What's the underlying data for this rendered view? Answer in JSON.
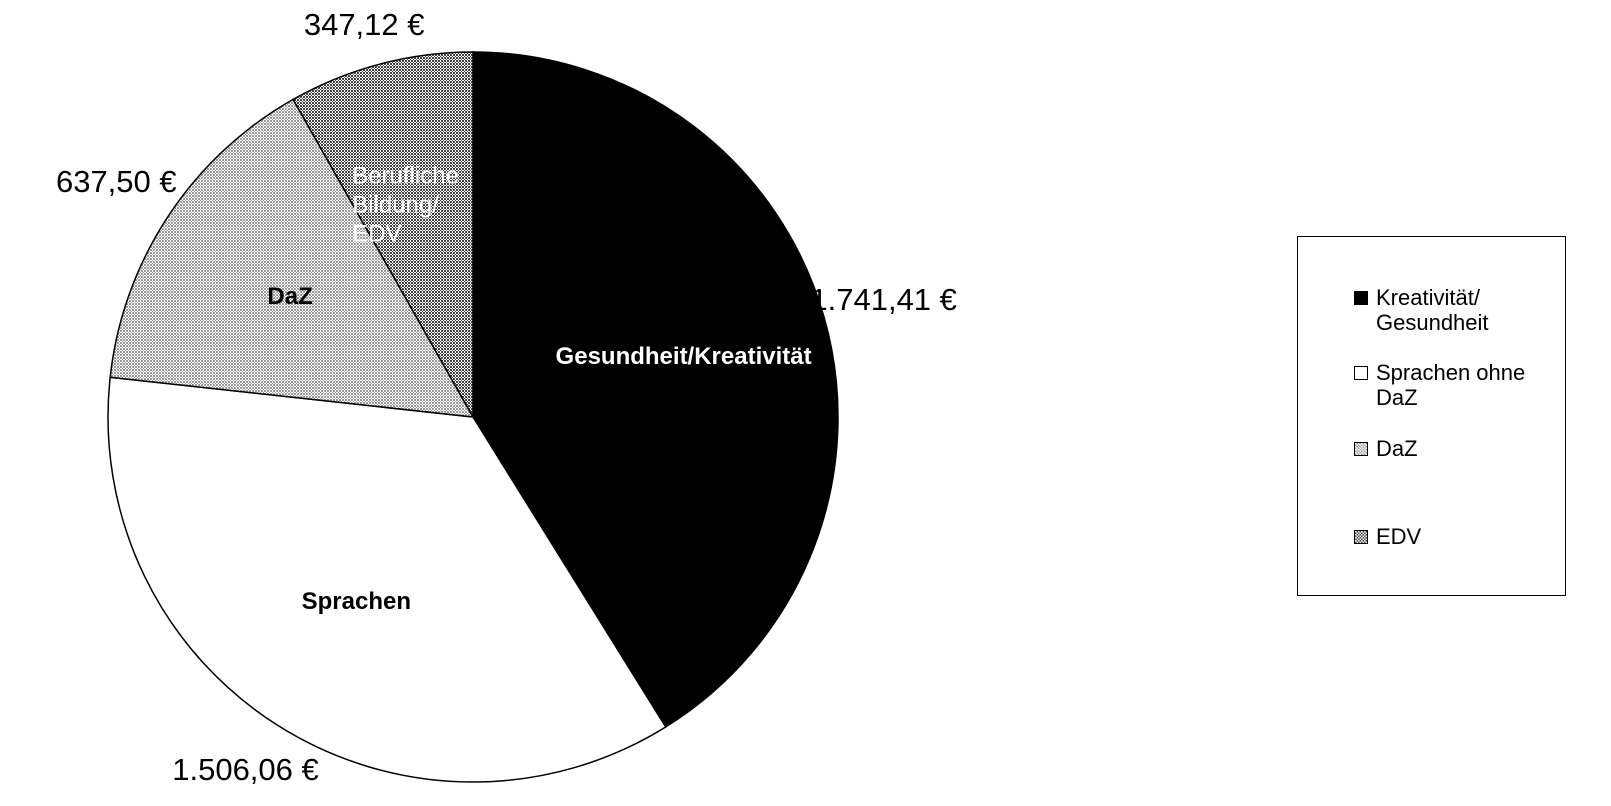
{
  "chart_data": {
    "type": "pie",
    "categories": [
      "Kreativität/ Gesundheit",
      "Sprachen ohne DaZ",
      "DaZ",
      "EDV"
    ],
    "slice_labels": [
      "Gesundheit/Kreativität",
      "Sprachen",
      "DaZ",
      "Berufliche Bildung/ EDV"
    ],
    "values": [
      1741.41,
      1506.06,
      637.5,
      347.12
    ],
    "value_labels": [
      "1.741,41 €",
      "1.506,06 €",
      "637,50 €",
      "347,12 €"
    ],
    "colors": [
      "#000000",
      "#ffffff",
      "#9a9a9a",
      "#404040"
    ],
    "legend": "right"
  }
}
